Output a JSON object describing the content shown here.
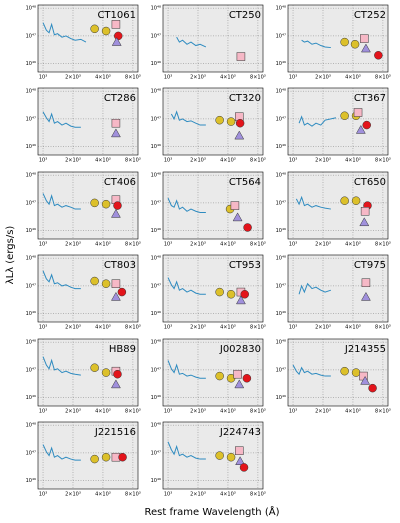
{
  "chart_data": {
    "type": "multi",
    "xlabel": "Rest frame Wavelength (Å)",
    "ylabel": "λLλ (ergs/s)",
    "xscale": "log",
    "yscale": "log",
    "grid": true,
    "xlim": [
      890,
      9000
    ],
    "ylim": [
      5e+45,
      1.3e+48
    ],
    "xticks": [
      {
        "value": 1000,
        "label": "10³"
      },
      {
        "value": 2000,
        "label": "2×10³"
      },
      {
        "value": 4000,
        "label": "4×10³"
      },
      {
        "value": 8000,
        "label": "8×10³"
      }
    ],
    "yticks": [
      {
        "value": 1e+46,
        "label": "10⁴⁶"
      },
      {
        "value": 1e+47,
        "label": "10⁴⁷"
      },
      {
        "value": 1e+48,
        "label": "10⁴⁸"
      }
    ],
    "spectrum_color": "#2e8bc0",
    "spectrum_x": [
      1000,
      1080,
      1150,
      1220,
      1300,
      1400,
      1550,
      1700,
      1900,
      2100,
      2400,
      2700
    ],
    "panels": [
      {
        "title": "CT1061",
        "spectrum": [
          3e+47,
          1.6e+47,
          1.3e+47,
          2.6e+47,
          1.1e+47,
          1.2e+47,
          9e+46,
          1e+47,
          8e+46,
          7e+46,
          7.5e+46,
          6e+46
        ],
        "points": [
          {
            "shape": "circle",
            "color": "#dcc02a",
            "x": 3300,
            "value": 1.8e+47
          },
          {
            "shape": "circle",
            "color": "#dcc02a",
            "x": 4300,
            "value": 1.5e+47
          },
          {
            "shape": "square",
            "color": "#f6b8c6",
            "x": 5400,
            "value": 2.6e+47
          },
          {
            "shape": "circle",
            "color": "#e3141b",
            "x": 5700,
            "value": 1e+47
          },
          {
            "shape": "triangle",
            "color": "#a090dc",
            "x": 5500,
            "value": 6e+46
          }
        ]
      },
      {
        "title": "CT250",
        "spectrum": [
          null,
          null,
          null,
          9e+46,
          6e+46,
          7e+46,
          5e+46,
          6e+46,
          4.5e+46,
          5e+46,
          4e+46,
          null
        ],
        "points": [
          {
            "shape": "square",
            "color": "#f6b8c6",
            "x": 5400,
            "value": 1.8e+46
          }
        ]
      },
      {
        "title": "CT252",
        "spectrum": [
          null,
          null,
          null,
          7e+46,
          6e+46,
          6.5e+46,
          5e+46,
          5.5e+46,
          4.5e+46,
          4e+46,
          3.8e+46,
          null
        ],
        "points": [
          {
            "shape": "circle",
            "color": "#dcc02a",
            "x": 3300,
            "value": 6e+46
          },
          {
            "shape": "circle",
            "color": "#dcc02a",
            "x": 4200,
            "value": 5e+46
          },
          {
            "shape": "square",
            "color": "#f6b8c6",
            "x": 5200,
            "value": 8e+46
          },
          {
            "shape": "triangle",
            "color": "#a090dc",
            "x": 5400,
            "value": 3.5e+46
          },
          {
            "shape": "circle",
            "color": "#e3141b",
            "x": 7200,
            "value": 2e+46
          }
        ]
      },
      {
        "title": "CT286",
        "spectrum": [
          1.8e+47,
          1.1e+47,
          8e+46,
          1.5e+47,
          7e+46,
          8e+46,
          6e+46,
          7e+46,
          5.5e+46,
          5e+46,
          5e+46,
          null
        ],
        "points": [
          {
            "shape": "square",
            "color": "#f6b8c6",
            "x": 5400,
            "value": 7e+46
          },
          {
            "shape": "triangle",
            "color": "#a090dc",
            "x": 5400,
            "value": 3e+46
          }
        ]
      },
      {
        "title": "CT320",
        "spectrum": [
          null,
          1.5e+47,
          1e+47,
          1.8e+47,
          9e+46,
          1e+47,
          8e+46,
          8.5e+46,
          7e+46,
          6e+46,
          6e+46,
          null
        ],
        "points": [
          {
            "shape": "circle",
            "color": "#dcc02a",
            "x": 3300,
            "value": 9e+46
          },
          {
            "shape": "circle",
            "color": "#dcc02a",
            "x": 4300,
            "value": 8e+46
          },
          {
            "shape": "square",
            "color": "#f6b8c6",
            "x": 5200,
            "value": 1.2e+47
          },
          {
            "shape": "circle",
            "color": "#e3141b",
            "x": 5300,
            "value": 7e+46
          },
          {
            "shape": "triangle",
            "color": "#a090dc",
            "x": 5200,
            "value": 2.5e+46
          }
        ]
      },
      {
        "title": "CT367",
        "spectrum": [
          null,
          null,
          7e+46,
          1.2e+47,
          6e+46,
          7e+46,
          5.5e+46,
          7e+46,
          6e+46,
          9e+46,
          1e+47,
          1.1e+47
        ],
        "points": [
          {
            "shape": "circle",
            "color": "#dcc02a",
            "x": 3300,
            "value": 1.3e+47
          },
          {
            "shape": "circle",
            "color": "#dcc02a",
            "x": 4300,
            "value": 1.3e+47
          },
          {
            "shape": "square",
            "color": "#f6b8c6",
            "x": 4500,
            "value": 1.7e+47
          },
          {
            "shape": "circle",
            "color": "#e3141b",
            "x": 5500,
            "value": 6e+46
          },
          {
            "shape": "triangle",
            "color": "#a090dc",
            "x": 4800,
            "value": 4e+46
          }
        ]
      },
      {
        "title": "CT406",
        "spectrum": [
          2.2e+47,
          1.2e+47,
          9e+46,
          1.8e+47,
          8e+46,
          9e+46,
          7e+46,
          8e+46,
          7e+46,
          6e+46,
          6e+46,
          null
        ],
        "points": [
          {
            "shape": "circle",
            "color": "#dcc02a",
            "x": 3300,
            "value": 1e+47
          },
          {
            "shape": "circle",
            "color": "#dcc02a",
            "x": 4300,
            "value": 9e+46
          },
          {
            "shape": "square",
            "color": "#f6b8c6",
            "x": 5400,
            "value": 1.3e+47
          },
          {
            "shape": "circle",
            "color": "#e3141b",
            "x": 5600,
            "value": 8e+46
          },
          {
            "shape": "triangle",
            "color": "#a090dc",
            "x": 5400,
            "value": 4e+46
          }
        ]
      },
      {
        "title": "CT564",
        "spectrum": [
          1.5e+47,
          8e+46,
          7e+46,
          1.2e+47,
          6e+46,
          7e+46,
          5e+46,
          6e+46,
          5e+46,
          4.5e+46,
          4.5e+46,
          null
        ],
        "points": [
          {
            "shape": "circle",
            "color": "#dcc02a",
            "x": 4200,
            "value": 6e+46
          },
          {
            "shape": "square",
            "color": "#f6b8c6",
            "x": 4700,
            "value": 8e+46
          },
          {
            "shape": "triangle",
            "color": "#a090dc",
            "x": 5000,
            "value": 3e+46
          },
          {
            "shape": "circle",
            "color": "#e3141b",
            "x": 6300,
            "value": 1.3e+46
          }
        ]
      },
      {
        "title": "CT650",
        "spectrum": [
          null,
          1.4e+47,
          9e+46,
          1.6e+47,
          8e+46,
          9e+46,
          7e+46,
          8e+46,
          7e+46,
          6.5e+46,
          6e+46,
          null
        ],
        "points": [
          {
            "shape": "circle",
            "color": "#dcc02a",
            "x": 3300,
            "value": 1.2e+47
          },
          {
            "shape": "circle",
            "color": "#dcc02a",
            "x": 4300,
            "value": 1.2e+47
          },
          {
            "shape": "circle",
            "color": "#e3141b",
            "x": 5600,
            "value": 8e+46
          },
          {
            "shape": "square",
            "color": "#f6b8c6",
            "x": 5300,
            "value": 5e+46
          },
          {
            "shape": "triangle",
            "color": "#a090dc",
            "x": 5200,
            "value": 2e+46
          }
        ]
      },
      {
        "title": "CT803",
        "spectrum": [
          3.5e+47,
          1.8e+47,
          1.4e+47,
          2.5e+47,
          1.2e+47,
          1.3e+47,
          1e+47,
          1.1e+47,
          9e+46,
          8e+46,
          8e+46,
          null
        ],
        "points": [
          {
            "shape": "circle",
            "color": "#dcc02a",
            "x": 3300,
            "value": 1.5e+47
          },
          {
            "shape": "circle",
            "color": "#dcc02a",
            "x": 4300,
            "value": 1.2e+47
          },
          {
            "shape": "square",
            "color": "#f6b8c6",
            "x": 5400,
            "value": 1.2e+47
          },
          {
            "shape": "circle",
            "color": "#e3141b",
            "x": 6200,
            "value": 6e+46
          },
          {
            "shape": "triangle",
            "color": "#a090dc",
            "x": 5400,
            "value": 4e+46
          }
        ]
      },
      {
        "title": "CT953",
        "spectrum": [
          2e+47,
          1.1e+47,
          8e+46,
          1.4e+47,
          7e+46,
          8e+46,
          6e+46,
          7e+46,
          5.5e+46,
          5e+46,
          5e+46,
          null
        ],
        "points": [
          {
            "shape": "circle",
            "color": "#dcc02a",
            "x": 3300,
            "value": 6e+46
          },
          {
            "shape": "circle",
            "color": "#dcc02a",
            "x": 4300,
            "value": 5e+46
          },
          {
            "shape": "square",
            "color": "#f6b8c6",
            "x": 5400,
            "value": 6e+46
          },
          {
            "shape": "circle",
            "color": "#e3141b",
            "x": 5900,
            "value": 5e+46
          },
          {
            "shape": "triangle",
            "color": "#a090dc",
            "x": 5400,
            "value": 3e+46
          }
        ]
      },
      {
        "title": "CT975",
        "spectrum": [
          null,
          null,
          5e+46,
          1e+47,
          6e+46,
          1.2e+47,
          8e+46,
          9e+46,
          7e+46,
          6e+46,
          7e+46,
          null
        ],
        "points": [
          {
            "shape": "square",
            "color": "#f6b8c6",
            "x": 5400,
            "value": 1.3e+47
          },
          {
            "shape": "triangle",
            "color": "#a090dc",
            "x": 5400,
            "value": 4e+46
          }
        ]
      },
      {
        "title": "HB89",
        "spectrum": [
          3e+47,
          1.5e+47,
          1.1e+47,
          2.2e+47,
          1e+47,
          1.1e+47,
          8e+46,
          9e+46,
          7.5e+46,
          7e+46,
          6.5e+46,
          null
        ],
        "points": [
          {
            "shape": "circle",
            "color": "#dcc02a",
            "x": 3300,
            "value": 1.2e+47
          },
          {
            "shape": "circle",
            "color": "#dcc02a",
            "x": 4300,
            "value": 8e+46
          },
          {
            "shape": "square",
            "color": "#f6b8c6",
            "x": 5400,
            "value": 9e+46
          },
          {
            "shape": "circle",
            "color": "#e3141b",
            "x": 5600,
            "value": 7e+46
          },
          {
            "shape": "triangle",
            "color": "#a090dc",
            "x": 5400,
            "value": 3e+46
          }
        ]
      },
      {
        "title": "J002830",
        "spectrum": [
          2.2e+47,
          1.1e+47,
          8e+46,
          1.5e+47,
          7e+46,
          7.5e+46,
          6e+46,
          6.5e+46,
          5.5e+46,
          5e+46,
          5e+46,
          null
        ],
        "points": [
          {
            "shape": "circle",
            "color": "#dcc02a",
            "x": 3300,
            "value": 6e+46
          },
          {
            "shape": "circle",
            "color": "#dcc02a",
            "x": 4300,
            "value": 5e+46
          },
          {
            "shape": "square",
            "color": "#f6b8c6",
            "x": 5000,
            "value": 7e+46
          },
          {
            "shape": "circle",
            "color": "#e3141b",
            "x": 6200,
            "value": 5e+46
          },
          {
            "shape": "triangle",
            "color": "#a090dc",
            "x": 5200,
            "value": 3e+46
          }
        ]
      },
      {
        "title": "J214355",
        "spectrum": [
          1.5e+47,
          9e+46,
          7e+46,
          1.2e+47,
          8e+46,
          9e+46,
          7e+46,
          7.5e+46,
          6.5e+46,
          6e+46,
          6e+46,
          null
        ],
        "points": [
          {
            "shape": "circle",
            "color": "#dcc02a",
            "x": 3300,
            "value": 9e+46
          },
          {
            "shape": "circle",
            "color": "#dcc02a",
            "x": 4300,
            "value": 8e+46
          },
          {
            "shape": "square",
            "color": "#f6b8c6",
            "x": 5100,
            "value": 6e+46
          },
          {
            "shape": "triangle",
            "color": "#a090dc",
            "x": 5300,
            "value": 4e+46
          },
          {
            "shape": "circle",
            "color": "#e3141b",
            "x": 6300,
            "value": 2.2e+46
          }
        ]
      },
      {
        "title": "J221516",
        "spectrum": [
          2e+47,
          1.1e+47,
          8e+46,
          1.5e+47,
          7e+46,
          8e+46,
          6e+46,
          7e+46,
          6e+46,
          5.5e+46,
          5.5e+46,
          null
        ],
        "points": [
          {
            "shape": "circle",
            "color": "#dcc02a",
            "x": 3300,
            "value": 6e+46
          },
          {
            "shape": "circle",
            "color": "#dcc02a",
            "x": 4300,
            "value": 7e+46
          },
          {
            "shape": "square",
            "color": "#f6b8c6",
            "x": 5400,
            "value": 7e+46
          },
          {
            "shape": "circle",
            "color": "#e3141b",
            "x": 6300,
            "value": 7e+46
          }
        ]
      },
      {
        "title": "J224743",
        "spectrum": [
          2.5e+47,
          1.3e+47,
          9e+46,
          1.7e+47,
          8e+46,
          9e+46,
          7e+46,
          8e+46,
          6.5e+46,
          6e+46,
          6e+46,
          null
        ],
        "points": [
          {
            "shape": "circle",
            "color": "#dcc02a",
            "x": 3300,
            "value": 8e+46
          },
          {
            "shape": "circle",
            "color": "#dcc02a",
            "x": 4300,
            "value": 7e+46
          },
          {
            "shape": "square",
            "color": "#f6b8c6",
            "x": 5200,
            "value": 1.2e+47
          },
          {
            "shape": "triangle",
            "color": "#a090dc",
            "x": 5300,
            "value": 5e+46
          },
          {
            "shape": "circle",
            "color": "#e3141b",
            "x": 5800,
            "value": 3e+46
          }
        ]
      }
    ]
  }
}
